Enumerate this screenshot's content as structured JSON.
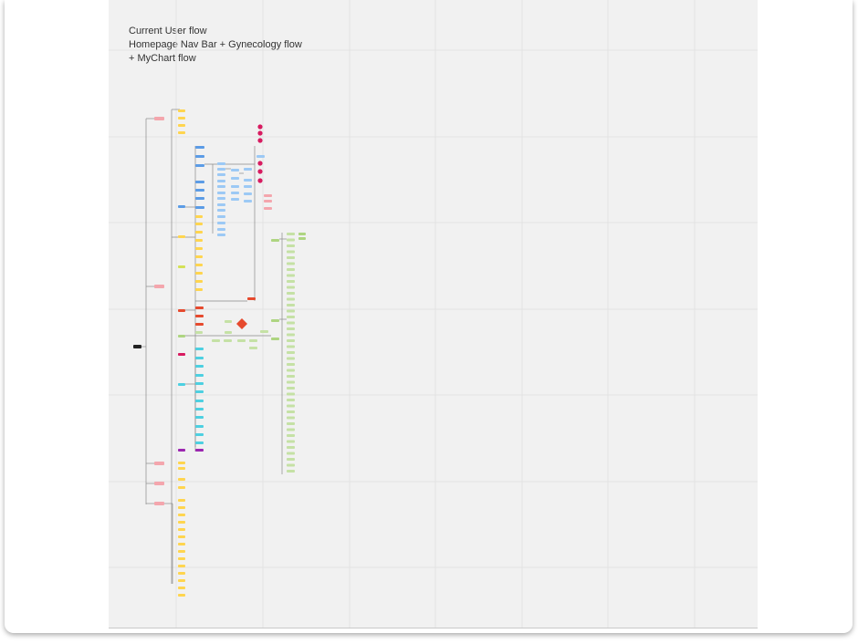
{
  "title_lines": [
    "Current User flow",
    "Homepage Nav Bar + Gynecology flow",
    "+ MyChart flow"
  ],
  "colors": {
    "board": "#f1f1f1",
    "grid": "#e3e3e3",
    "start": "#222222",
    "pink_label": "#f4a6ad",
    "yellow": "#ffd54f",
    "lime": "#d4e157",
    "blue": "#5c9ce6",
    "light_blue": "#9cc9f5",
    "magenta": "#d81b60",
    "red": "#e64a2e",
    "green": "#aed581",
    "light_green": "#c5e1a5",
    "cyan": "#4dd0e1",
    "purple": "#9c27b0",
    "connector": "#8a8a8a"
  },
  "node_groups": [
    "start",
    "top-section-labels",
    "yellow-menu-top",
    "blue-nav-column",
    "light-blue-subcolumns",
    "magenta-dots",
    "pink-side-notes",
    "yellow-menu-middle",
    "lime-section",
    "red-section",
    "gynecology-decision",
    "green-flow-column",
    "cyan-section",
    "purple-section",
    "yellow-menu-bottom"
  ]
}
